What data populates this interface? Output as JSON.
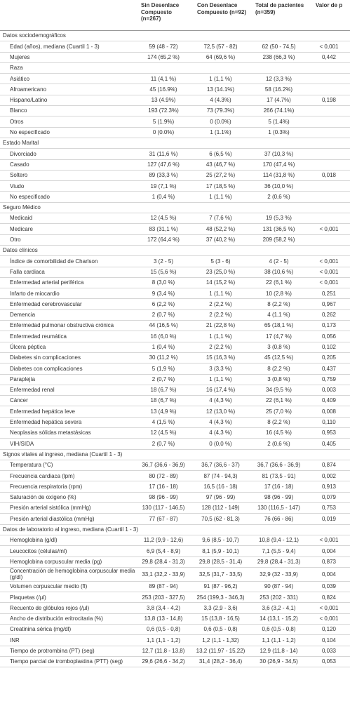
{
  "table": {
    "header": [
      "Sin Desenlace Compuesto (n=267)",
      "Con Desenlace Compuesto (n=92)",
      "Total de pacientes (n=359)",
      "Valor de p"
    ],
    "rows": [
      {
        "section": "Datos sociodemográficos"
      },
      {
        "label": "Edad (años), mediana (Cuartil 1 - 3)",
        "values": [
          "59 (48 - 72)",
          "72,5 (57 - 82)",
          "62 (50 - 74,5)"
        ],
        "p": "< 0,001"
      },
      {
        "label": "Mujeres",
        "values": [
          "174 (65,2 %)",
          "64 (69,6 %)",
          "238 (66,3 %)"
        ],
        "p": "0,442"
      },
      {
        "label": "Raza"
      },
      {
        "label": "Asiático",
        "values": [
          "11 (4,1 %)",
          "1 (1,1 %)",
          "12 (3,3 %)"
        ]
      },
      {
        "label": "Afroamericano",
        "values": [
          "45 (16.9%)",
          "13 (14.1%)",
          "58 (16.2%)"
        ]
      },
      {
        "label": "Hispano/Latino",
        "values": [
          "13 (4.9%)",
          "4 (4.3%)",
          "17 (4.7%)"
        ],
        "p": "0,198"
      },
      {
        "label": "Blanco",
        "values": [
          "193 (72.3%)",
          "73 (79.3%)",
          "266 (74.1%)"
        ]
      },
      {
        "label": "Otros",
        "values": [
          "5 (1.9%)",
          "0 (0.0%)",
          "5 (1.4%)"
        ]
      },
      {
        "label": "No especificado",
        "values": [
          "0 (0.0%)",
          "1 (1.1%)",
          "1 (0.3%)"
        ]
      },
      {
        "section": "Estado Marital"
      },
      {
        "label": "Divorciado",
        "values": [
          "31 (11,6 %)",
          "6 (6,5 %)",
          "37 (10,3 %)"
        ]
      },
      {
        "label": "Casado",
        "values": [
          "127 (47,6 %)",
          "43 (46,7 %)",
          "170 (47,4 %)"
        ]
      },
      {
        "label": "Soltero",
        "values": [
          "89 (33,3 %)",
          "25 (27,2 %)",
          "114 (31,8 %)"
        ],
        "p": "0,018"
      },
      {
        "label": "Viudo",
        "values": [
          "19 (7,1 %)",
          "17 (18,5 %)",
          "36 (10,0 %)"
        ]
      },
      {
        "label": "No especificado",
        "values": [
          "1 (0,4 %)",
          "1 (1,1 %)",
          "2 (0,6 %)"
        ]
      },
      {
        "section": "Seguro Médico"
      },
      {
        "label": "Medicaid",
        "values": [
          "12 (4,5 %)",
          "7 (7,6 %)",
          "19 (5,3 %)"
        ]
      },
      {
        "label": "Medicare",
        "values": [
          "83 (31,1 %)",
          "48 (52,2 %)",
          "131 (36,5 %)"
        ],
        "p": "< 0,001"
      },
      {
        "label": "Otro",
        "values": [
          "172 (64,4 %)",
          "37 (40,2 %)",
          "209 (58,2 %)"
        ]
      },
      {
        "section": "Datos clínicos"
      },
      {
        "label": "Índice de comorbilidad de Charlson",
        "values": [
          "3 (2 - 5)",
          "5 (3 - 6)",
          "4 (2 - 5)"
        ],
        "p": "< 0,001"
      },
      {
        "label": "Falla cardiaca",
        "values": [
          "15 (5,6 %)",
          "23 (25,0 %)",
          "38 (10,6 %)"
        ],
        "p": "< 0,001"
      },
      {
        "label": "Enfermedad arterial periférica",
        "values": [
          "8 (3,0 %)",
          "14 (15,2 %)",
          "22 (6,1 %)"
        ],
        "p": "< 0,001"
      },
      {
        "label": "Infarto de miocardio",
        "values": [
          "9 (3,4 %)",
          "1 (1,1 %)",
          "10 (2,8 %)"
        ],
        "p": "0,251"
      },
      {
        "label": "Enfermedad cerebrovascular",
        "values": [
          "6 (2,2 %)",
          "2 (2,2 %)",
          "8 (2,2 %)"
        ],
        "p": "0,967"
      },
      {
        "label": "Demencia",
        "values": [
          "2 (0,7 %)",
          "2 (2,2 %)",
          "4 (1,1 %)"
        ],
        "p": "0,262"
      },
      {
        "label": "Enfermedad pulmonar obstructiva crónica",
        "values": [
          "44 (16,5 %)",
          "21 (22,8 %)",
          "65 (18,1 %)"
        ],
        "p": "0,173"
      },
      {
        "label": "Enfermedad reumática",
        "values": [
          "16 (6,0 %)",
          "1 (1,1 %)",
          "17 (4,7 %)"
        ],
        "p": "0,056"
      },
      {
        "label": "Úlcera péptica",
        "values": [
          "1 (0,4 %)",
          "2 (2,2 %)",
          "3 (0,8 %)"
        ],
        "p": "0,102"
      },
      {
        "label": "Diabetes sin complicaciones",
        "values": [
          "30 (11,2 %)",
          "15 (16,3 %)",
          "45 (12,5 %)"
        ],
        "p": "0,205"
      },
      {
        "label": "Diabetes con complicaciones",
        "values": [
          "5 (1,9 %)",
          "3 (3,3 %)",
          "8 (2,2 %)"
        ],
        "p": "0,437"
      },
      {
        "label": "Paraplejía",
        "values": [
          "2 (0,7 %)",
          "1 (1,1 %)",
          "3 (0,8 %)"
        ],
        "p": "0,759"
      },
      {
        "label": "Enfermedad renal",
        "values": [
          "18 (6,7 %)",
          "16 (17,4 %)",
          "34 (9,5 %)"
        ],
        "p": "0,003"
      },
      {
        "label": "Cáncer",
        "values": [
          "18 (6,7 %)",
          "4 (4,3 %)",
          "22 (6,1 %)"
        ],
        "p": "0,409"
      },
      {
        "label": "Enfermedad hepática leve",
        "values": [
          "13 (4,9 %)",
          "12 (13,0 %)",
          "25 (7,0 %)"
        ],
        "p": "0,008"
      },
      {
        "label": "Enfermedad hepática severa",
        "values": [
          "4 (1,5 %)",
          "4 (4,3 %)",
          "8 (2,2 %)"
        ],
        "p": "0,110"
      },
      {
        "label": "Neoplasias sólidas metastásicas",
        "values": [
          "12 (4,5 %)",
          "4 (4,3 %)",
          "16 (4,5 %)"
        ],
        "p": "0,953"
      },
      {
        "label": "VIH/SIDA",
        "values": [
          "2 (0,7 %)",
          "0 (0,0 %)",
          "2 (0,6 %)"
        ],
        "p": "0,405"
      },
      {
        "section": "Signos vitales al ingreso, mediana (Cuartil 1 - 3)"
      },
      {
        "label": "Temperatura (°C)",
        "values": [
          "36,7 (36,6 - 36,9)",
          "36,7 (36,6 - 37)",
          "36,7 (36,6 - 36,9)"
        ],
        "p": "0,874"
      },
      {
        "label": "Frecuencia cardiaca (lpm)",
        "values": [
          "80 (72 - 89)",
          "87 (74 - 94,3)",
          "81 (73,5 - 91)"
        ],
        "p": "0,002"
      },
      {
        "label": "Frecuencia respiratoria (rpm)",
        "values": [
          "17 (16 - 18)",
          "16,5 (16 - 18)",
          "17 (16 - 18)"
        ],
        "p": "0,913"
      },
      {
        "label": "Saturación de oxígeno (%)",
        "values": [
          "98 (96 - 99)",
          "97 (96 - 99)",
          "98 (96 - 99)"
        ],
        "p": "0,079"
      },
      {
        "label": "Presión arterial sistólica (mmHg)",
        "values": [
          "130 (117 - 146,5)",
          "128 (112 - 149)",
          "130 (116,5 - 147)"
        ],
        "p": "0,753"
      },
      {
        "label": "Presión arterial diastólica (mmHg)",
        "values": [
          "77 (67 - 87)",
          "70,5 (62 - 81,3)",
          "76 (66 - 86)"
        ],
        "p": "0,019"
      },
      {
        "section": "Datos de laboratorio al ingreso, mediana (Cuartil 1 - 3)"
      },
      {
        "label": "Hemoglobina (g/dl)",
        "values": [
          "11,2 (9,9 - 12,6)",
          "9,6 (8,5 - 10,7)",
          "10,8 (9,4 - 12,1)"
        ],
        "p": "< 0,001"
      },
      {
        "label": "Leucocitos (células/ml)",
        "values": [
          "6,9 (5,4 - 8,9)",
          "8,1 (5,9 - 10,1)",
          "7,1 (5,5 - 9,4)"
        ],
        "p": "0,004"
      },
      {
        "label": "Hemoglobina corpuscular media (pg)",
        "values": [
          "29,8 (28,4 - 31,3)",
          "29,8 (28,5 - 31,4)",
          "29,8 (28,4 - 31,3)"
        ],
        "p": "0,873"
      },
      {
        "label": "Concentración de hemoglobina corpuscular media (g/dl)",
        "values": [
          "33,1 (32,2 - 33,9)",
          "32,5 (31,7 - 33,5)",
          "32,9 (32 - 33,9)"
        ],
        "p": "0,004"
      },
      {
        "label": "Volumen corpuscular medio (fl)",
        "values": [
          "89 (87 - 94)",
          "91 (87 - 96,2)",
          "90 (87 - 94)"
        ],
        "p": "0,039"
      },
      {
        "label": "Plaquetas (/µl)",
        "values": [
          "253 (203 - 327,5)",
          "254 (199,3 - 346,3)",
          "253 (202 - 331)"
        ],
        "p": "0,824"
      },
      {
        "label": "Recuento de glóbulos rojos (/µl)",
        "values": [
          "3,8 (3,4 - 4,2)",
          "3,3 (2,9 - 3,6)",
          "3,6 (3,2 - 4,1)"
        ],
        "p": "< 0,001"
      },
      {
        "label": "Ancho de distribución eritrocitaria (%)",
        "values": [
          "13,8 (13 - 14,8)",
          "15 (13,8 - 16,5)",
          "14 (13,1 - 15,2)"
        ],
        "p": "< 0,001"
      },
      {
        "label": "Creatinina sérica (mg/dl)",
        "values": [
          "0,6 (0,5 - 0,8)",
          "0,6 (0,5 - 0,8)",
          "0,6 (0,5 - 0,8)"
        ],
        "p": "0,120"
      },
      {
        "label": "INR",
        "values": [
          "1,1 (1,1 - 1,2)",
          "1,2 (1,1 - 1,32)",
          "1,1 (1,1 - 1,2)"
        ],
        "p": "0,104"
      },
      {
        "label": "Tiempo de protrombina (PT) (seg)",
        "values": [
          "12,7 (11,8 - 13,8)",
          "13,2 (11,97 - 15,22)",
          "12,9 (11,8 - 14)"
        ],
        "p": "0,033"
      },
      {
        "label": "Tiempo parcial de tromboplastina (PTT) (seg)",
        "values": [
          "29,6 (26,6 - 34,2)",
          "31,4 (28,2 - 36,4)",
          "30 (26,9 - 34,5)"
        ],
        "p": "0,053"
      }
    ]
  }
}
